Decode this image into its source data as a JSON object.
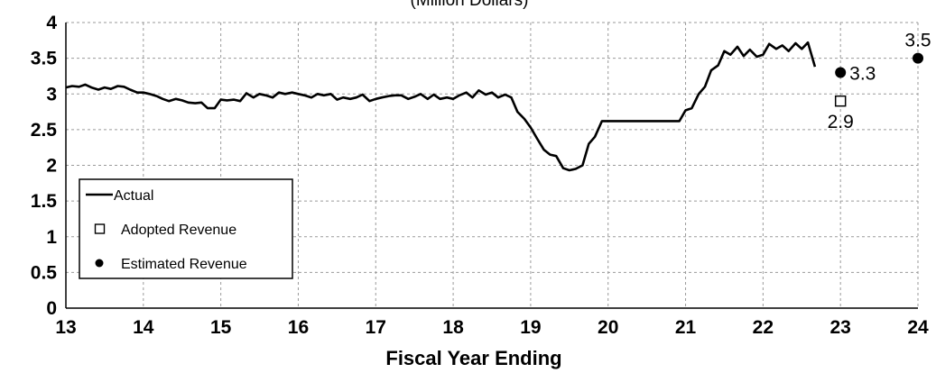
{
  "chart_data": {
    "type": "line",
    "subtitle": "(Million Dollars)",
    "xlabel": "Fiscal Year Ending",
    "ylabel": "",
    "xlim": [
      13,
      24
    ],
    "ylim": [
      0,
      4
    ],
    "x_ticks": [
      "13",
      "14",
      "15",
      "16",
      "17",
      "18",
      "19",
      "20",
      "21",
      "22",
      "23",
      "24"
    ],
    "y_ticks": [
      "0",
      "0.5",
      "1",
      "1.5",
      "2",
      "2.5",
      "3",
      "3.5",
      "4"
    ],
    "grid": true,
    "legend_position": "bottom-left",
    "series": [
      {
        "name": "Actual",
        "marker": "line",
        "color": "#000000",
        "points": [
          [
            13.0,
            3.09
          ],
          [
            13.08,
            3.11
          ],
          [
            13.17,
            3.1
          ],
          [
            13.25,
            3.13
          ],
          [
            13.33,
            3.09
          ],
          [
            13.42,
            3.06
          ],
          [
            13.5,
            3.09
          ],
          [
            13.58,
            3.07
          ],
          [
            13.67,
            3.11
          ],
          [
            13.75,
            3.1
          ],
          [
            13.83,
            3.06
          ],
          [
            13.92,
            3.02
          ],
          [
            14.0,
            3.02
          ],
          [
            14.08,
            3.0
          ],
          [
            14.17,
            2.97
          ],
          [
            14.25,
            2.93
          ],
          [
            14.33,
            2.9
          ],
          [
            14.42,
            2.93
          ],
          [
            14.5,
            2.91
          ],
          [
            14.58,
            2.88
          ],
          [
            14.67,
            2.87
          ],
          [
            14.75,
            2.88
          ],
          [
            14.83,
            2.8
          ],
          [
            14.92,
            2.8
          ],
          [
            15.0,
            2.92
          ],
          [
            15.08,
            2.91
          ],
          [
            15.17,
            2.92
          ],
          [
            15.25,
            2.9
          ],
          [
            15.33,
            3.01
          ],
          [
            15.42,
            2.95
          ],
          [
            15.5,
            3.0
          ],
          [
            15.58,
            2.98
          ],
          [
            15.67,
            2.95
          ],
          [
            15.75,
            3.02
          ],
          [
            15.83,
            3.0
          ],
          [
            15.92,
            3.02
          ],
          [
            16.0,
            3.0
          ],
          [
            16.08,
            2.98
          ],
          [
            16.17,
            2.95
          ],
          [
            16.25,
            3.0
          ],
          [
            16.33,
            2.98
          ],
          [
            16.42,
            3.0
          ],
          [
            16.5,
            2.92
          ],
          [
            16.58,
            2.95
          ],
          [
            16.67,
            2.93
          ],
          [
            16.75,
            2.95
          ],
          [
            16.83,
            2.99
          ],
          [
            16.92,
            2.9
          ],
          [
            17.0,
            2.93
          ],
          [
            17.08,
            2.95
          ],
          [
            17.17,
            2.97
          ],
          [
            17.25,
            2.98
          ],
          [
            17.33,
            2.98
          ],
          [
            17.42,
            2.93
          ],
          [
            17.5,
            2.96
          ],
          [
            17.58,
            3.0
          ],
          [
            17.67,
            2.93
          ],
          [
            17.75,
            2.99
          ],
          [
            17.83,
            2.93
          ],
          [
            17.92,
            2.95
          ],
          [
            18.0,
            2.93
          ],
          [
            18.08,
            2.98
          ],
          [
            18.17,
            3.02
          ],
          [
            18.25,
            2.95
          ],
          [
            18.33,
            3.05
          ],
          [
            18.42,
            2.99
          ],
          [
            18.5,
            3.02
          ],
          [
            18.58,
            2.95
          ],
          [
            18.67,
            2.99
          ],
          [
            18.75,
            2.95
          ],
          [
            18.83,
            2.75
          ],
          [
            18.92,
            2.65
          ],
          [
            19.0,
            2.53
          ],
          [
            19.08,
            2.38
          ],
          [
            19.17,
            2.22
          ],
          [
            19.25,
            2.15
          ],
          [
            19.33,
            2.13
          ],
          [
            19.42,
            1.96
          ],
          [
            19.5,
            1.93
          ],
          [
            19.58,
            1.95
          ],
          [
            19.67,
            2.0
          ],
          [
            19.75,
            2.3
          ],
          [
            19.83,
            2.4
          ],
          [
            19.92,
            2.62
          ],
          [
            20.0,
            2.62
          ],
          [
            20.5,
            2.62
          ],
          [
            20.92,
            2.62
          ],
          [
            21.0,
            2.77
          ],
          [
            21.08,
            2.8
          ],
          [
            21.17,
            3.0
          ],
          [
            21.25,
            3.1
          ],
          [
            21.33,
            3.33
          ],
          [
            21.42,
            3.4
          ],
          [
            21.5,
            3.6
          ],
          [
            21.58,
            3.55
          ],
          [
            21.67,
            3.66
          ],
          [
            21.75,
            3.53
          ],
          [
            21.83,
            3.62
          ],
          [
            21.92,
            3.52
          ],
          [
            22.0,
            3.55
          ],
          [
            22.08,
            3.7
          ],
          [
            22.17,
            3.63
          ],
          [
            22.25,
            3.68
          ],
          [
            22.33,
            3.6
          ],
          [
            22.42,
            3.71
          ],
          [
            22.5,
            3.63
          ],
          [
            22.58,
            3.72
          ],
          [
            22.67,
            3.38
          ]
        ]
      },
      {
        "name": "Adopted Revenue",
        "marker": "open-square",
        "color": "#000000",
        "points": [
          [
            23,
            2.9
          ]
        ],
        "labels": [
          "2.9"
        ]
      },
      {
        "name": "Estimated Revenue",
        "marker": "filled-circle",
        "color": "#000000",
        "points": [
          [
            23,
            3.3
          ],
          [
            24,
            3.5
          ]
        ],
        "labels": [
          "3.3",
          "3.5"
        ]
      }
    ]
  }
}
